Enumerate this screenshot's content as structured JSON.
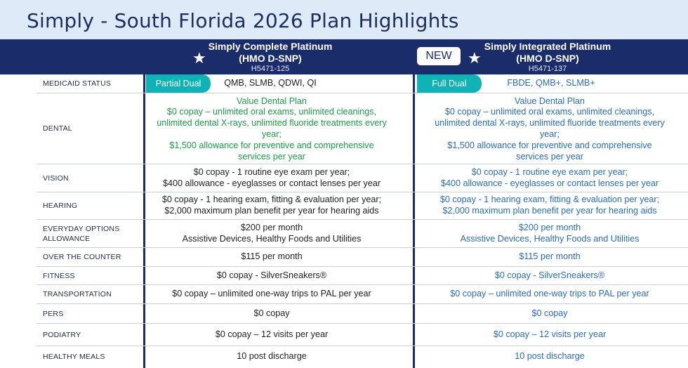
{
  "page": {
    "title": "Simply - South Florida 2026 Plan Highlights"
  },
  "plans": [
    {
      "name": "Simply Complete Platinum",
      "type": "(HMO D-SNP)",
      "code": "H5471-125",
      "star": "★"
    },
    {
      "name": "Simply Integrated Platinum",
      "type": "(HMO D-SNP)",
      "code": "H5471-137",
      "star": "★",
      "badge": "NEW"
    }
  ],
  "rows": [
    {
      "label": "MEDICAID STATUS",
      "dual1": "Partial Dual",
      "plan1": [
        "QMB, SLMB, QDWI, QI"
      ],
      "dual2": "Full Dual",
      "plan2": [
        "FBDE, QMB+, SLMB+"
      ]
    },
    {
      "label": "DENTAL",
      "plan1": [
        "Value Dental Plan",
        "$0 copay – unlimited oral exams, unlimited cleanings,",
        "unlimited dental X-rays, unlimited fluoride treatments every",
        "year;",
        "$1,500 allowance for preventive and comprehensive",
        "services per year"
      ],
      "plan2": [
        "Value Dental Plan",
        "$0 copay – unlimited oral exams, unlimited cleanings,",
        "unlimited dental X-rays, unlimited fluoride treatments every",
        "year;",
        "$1,500 allowance for preventive and comprehensive",
        "services per year"
      ]
    },
    {
      "label": "VISION",
      "plan1": [
        "$0 copay - 1 routine eye exam per year;",
        "$400 allowance - eyeglasses or contact lenses per year"
      ],
      "plan2": [
        "$0 copay - 1 routine eye exam per year;",
        "$400 allowance - eyeglasses or contact lenses per year"
      ]
    },
    {
      "label": "HEARING",
      "plan1": [
        "$0 copay - 1 hearing exam, fitting & evaluation per year;",
        "$2,000 maximum plan benefit per year for hearing aids"
      ],
      "plan2": [
        "$0 copay - 1 hearing exam, fitting & evaluation per year;",
        "$2,000 maximum plan benefit per year for hearing aids"
      ]
    },
    {
      "label": "EVERYDAY OPTIONS ALLOWANCE",
      "plan1": [
        "$200 per month",
        "Assistive Devices, Healthy Foods and Utilities"
      ],
      "plan2": [
        "$200 per month",
        "Assistive Devices, Healthy Foods and Utilities"
      ]
    },
    {
      "label": "OVER THE COUNTER",
      "plan1": [
        "$115 per month"
      ],
      "plan2": [
        "$115 per month"
      ]
    },
    {
      "label": "FITNESS",
      "plan1": [
        "$0 copay - SilverSneakers®"
      ],
      "plan2": [
        "$0 copay - SilverSneakers®"
      ]
    },
    {
      "label": "TRANSPORTATION",
      "plan1": [
        "$0 copay – unlimited one-way trips to PAL per year"
      ],
      "plan2": [
        "$0 copay – unlimited one-way trips to PAL per year"
      ]
    },
    {
      "label": "PERS",
      "plan1": [
        "$0 copay"
      ],
      "plan2": [
        "$0 copay"
      ]
    },
    {
      "label": "PODIATRY",
      "plan1": [
        "$0 copay – 12 visits per year"
      ],
      "plan2": [
        "$0 copay – 12 visits per year"
      ]
    },
    {
      "label": "HEALTHY MEALS",
      "plan1": [
        "10 post discharge"
      ],
      "plan2": [
        "10 post discharge"
      ]
    }
  ],
  "colors": {
    "navy": "#1b2c6b",
    "title_bg": "#dfeaf9",
    "teal": "#0fb3b5",
    "green_text": "#1e9a47",
    "blue_text": "#2a6db5"
  }
}
